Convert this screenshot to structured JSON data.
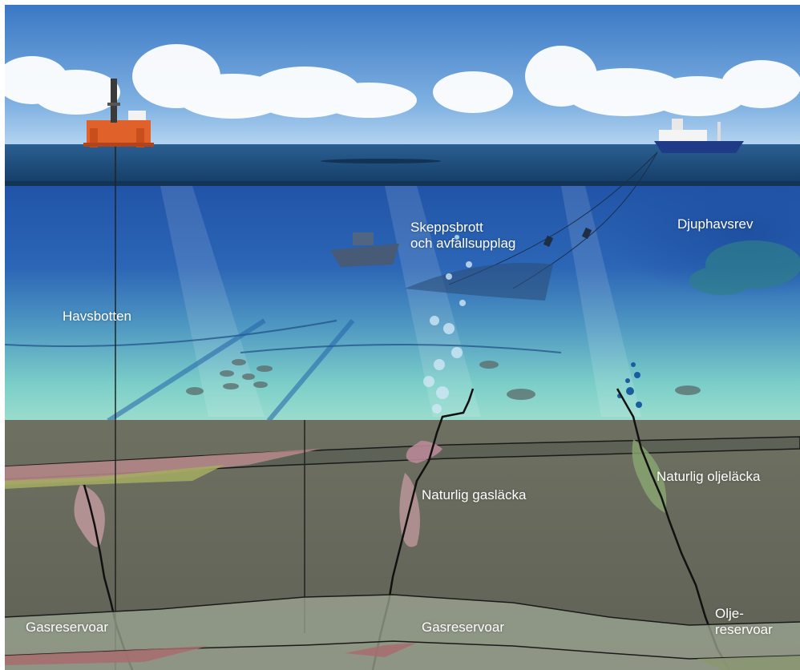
{
  "labels": {
    "skeppsbrott_line1": "Skeppsbrott",
    "skeppsbrott_line2": "och avfallsupplag",
    "djuphavsrev": "Djuphavsrev",
    "havsbotten": "Havsbotten",
    "naturlig_gaslacka": "Naturlig gasläcka",
    "naturlig_oljelacka": "Naturlig oljeläcka",
    "gasreservoar_left": "Gasreservoar",
    "gasreservoar_center": "Gasreservoar",
    "oljereservoar_line1": "Olje-",
    "oljereservoar_line2": "reservoar"
  },
  "colors": {
    "sky_top": "#3f7fc8",
    "sky_bottom": "#9ec6ec",
    "surface_sea": "#1d4f7e",
    "deep_water": "#1f55a8",
    "shallow_water": "#62c2c6",
    "sediment": "#6b6d5d",
    "rock_dark": "#595b4e",
    "gas_layer": "#c08a90",
    "oil_layer": "#a9b46c",
    "reservoir_band": "#9aa693"
  }
}
